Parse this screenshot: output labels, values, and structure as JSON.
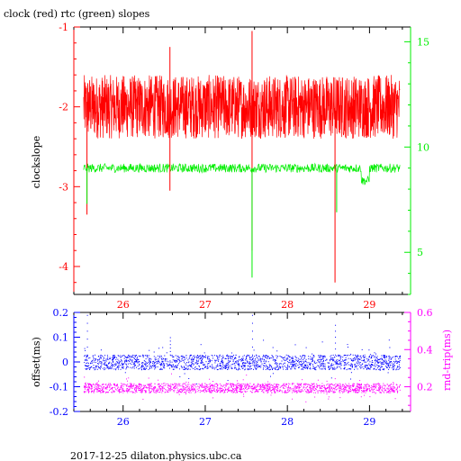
{
  "colors": {
    "clock": "#ff0000",
    "rtc": "#00ee00",
    "offset": "#0000ff",
    "rtt": "#ff00ff",
    "axis": "#000000"
  },
  "footer": "2017-12-25 dilaton.physics.ubc.ca",
  "chart_data": [
    {
      "type": "line",
      "title": "clock (red) rtc (green) slopes",
      "ylabel": "clockslope",
      "ylabel_right": "",
      "xlim": [
        25.4,
        29.5
      ],
      "ylim": [
        -4.35,
        -1.0
      ],
      "ylim_right": [
        3.0,
        15.7
      ],
      "x_ticks": [
        "26",
        "27",
        "28",
        "29"
      ],
      "y_ticks": [
        "-1",
        "-2",
        "-3",
        "-4"
      ],
      "y_ticks_right": [
        "5",
        "10",
        "15"
      ],
      "series": [
        {
          "name": "clock",
          "axis": "left",
          "color": "#ff0000",
          "band": [
            -2.25,
            -1.75
          ],
          "level": -2.0
        },
        {
          "name": "rtc",
          "axis": "right",
          "color": "#00ee00",
          "band": [
            8.7,
            9.3
          ],
          "level": 9.0
        }
      ],
      "spikes": [
        {
          "series": "clock",
          "x": 25.56,
          "y": -3.35
        },
        {
          "series": "clock",
          "x": 26.57,
          "y": -1.25
        },
        {
          "series": "clock",
          "x": 26.57,
          "y": -3.05
        },
        {
          "series": "clock",
          "x": 27.57,
          "y": -1.05
        },
        {
          "series": "clock",
          "x": 27.57,
          "y": -3.8
        },
        {
          "series": "clock",
          "x": 28.58,
          "y": -4.2
        },
        {
          "series": "rtc",
          "x": 25.56,
          "y": 7.3
        },
        {
          "series": "rtc",
          "x": 27.57,
          "y": 3.8
        },
        {
          "series": "rtc",
          "x": 28.6,
          "y": 6.9
        }
      ]
    },
    {
      "type": "scatter",
      "title": "",
      "ylabel": "offset(ms)",
      "ylabel_right": "rnd-trip(ms)",
      "xlim": [
        25.4,
        29.5
      ],
      "ylim": [
        -0.2,
        0.2
      ],
      "ylim_right": [
        0.067,
        0.6
      ],
      "x_ticks": [
        "26",
        "27",
        "28",
        "29"
      ],
      "y_ticks": [
        "0.2",
        "0.1",
        "0",
        "-0.1",
        "-0.2"
      ],
      "y_ticks_right": [
        "0.6",
        "0.4",
        "0.2"
      ],
      "series": [
        {
          "name": "offset",
          "axis": "left",
          "color": "#0000ff",
          "band": [
            -0.03,
            0.03
          ],
          "level": 0.0
        },
        {
          "name": "rnd-trip",
          "axis": "right",
          "color": "#ff00ff",
          "band": [
            0.17,
            0.22
          ],
          "level": 0.195
        }
      ],
      "spikes": [
        {
          "series": "offset",
          "x": 25.56,
          "y": 0.19
        },
        {
          "series": "offset",
          "x": 26.57,
          "y": 0.1
        },
        {
          "series": "offset",
          "x": 27.57,
          "y": 0.19
        },
        {
          "series": "offset",
          "x": 28.58,
          "y": 0.15
        }
      ]
    }
  ]
}
